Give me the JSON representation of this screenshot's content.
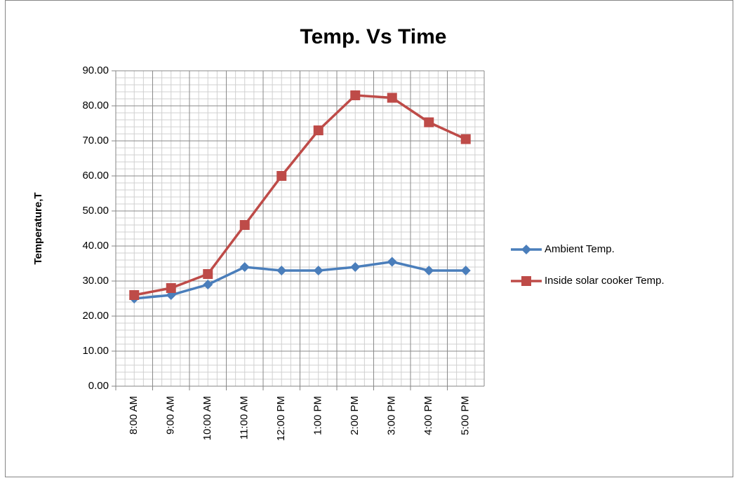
{
  "chart_data": {
    "type": "line",
    "title": "Temp. Vs Time",
    "y_label": "Temperature,T",
    "categories": [
      "8:00 AM",
      "9:00 AM",
      "10:00 AM",
      "11:00 AM",
      "12:00 PM",
      "1:00 PM",
      "2:00 PM",
      "3:00 PM",
      "4:00 PM",
      "5:00 PM"
    ],
    "series": [
      {
        "name": "Ambient Temp.",
        "color": "#4a7ebb",
        "marker": "diamond",
        "values": [
          25,
          26,
          29,
          34,
          33,
          33,
          34,
          35.5,
          33,
          33
        ]
      },
      {
        "name": "Inside solar cooker Temp.",
        "color": "#be4b48",
        "marker": "square",
        "values": [
          26,
          28,
          32,
          46,
          60,
          73,
          83,
          82.3,
          75.3,
          70.5
        ]
      }
    ],
    "ylim": [
      0,
      90
    ],
    "yticks": [
      {
        "value": 0,
        "label": "0.00"
      },
      {
        "value": 10,
        "label": "10.00"
      },
      {
        "value": 20,
        "label": "20.00"
      },
      {
        "value": 30,
        "label": "30.00"
      },
      {
        "value": 40,
        "label": "40.00"
      },
      {
        "value": 50,
        "label": "50.00"
      },
      {
        "value": 60,
        "label": "60.00"
      },
      {
        "value": 70,
        "label": "70.00"
      },
      {
        "value": 80,
        "label": "80.00"
      },
      {
        "value": 90,
        "label": "90.00"
      }
    ],
    "grid": true,
    "legend": "right"
  }
}
